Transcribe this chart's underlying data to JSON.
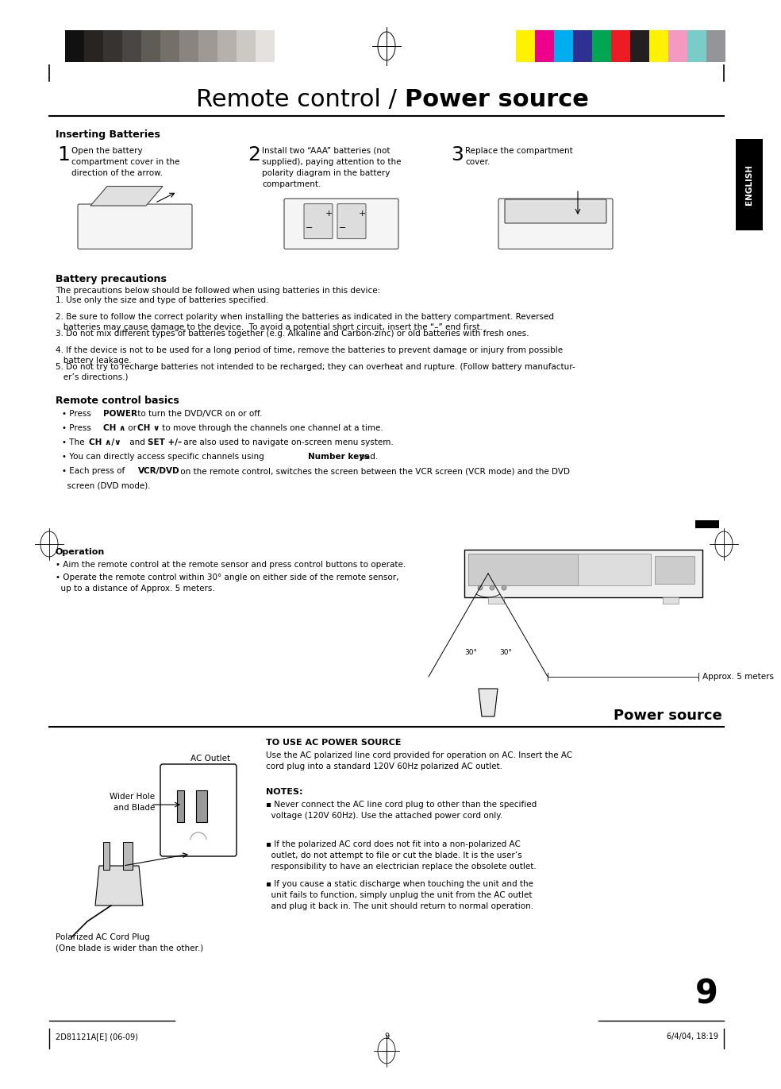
{
  "bg_color": "#ffffff",
  "page_width": 9.54,
  "page_height": 13.51,
  "title_normal": "Remote control / ",
  "title_bold": "Power source",
  "section1_header": "Inserting Batteries",
  "step1_num": "1",
  "step1_text": "Open the battery\ncompartment cover in the\ndirection of the arrow.",
  "step2_num": "2",
  "step2_text": "Install two “AAA” batteries (not\nsupplied), paying attention to the\npolarity diagram in the battery\ncompartment.",
  "step3_num": "3",
  "step3_text": "Replace the compartment\ncover.",
  "section2_header": "Battery precautions",
  "battery_precautions_intro": "The precautions below should be followed when using batteries in this device:",
  "battery_precautions": [
    "1. Use only the size and type of batteries specified.",
    "2. Be sure to follow the correct polarity when installing the batteries as indicated in the battery compartment. Reversed\n   batteries may cause damage to the device.  To avoid a potential short circuit, insert the “–” end first.",
    "3. Do not mix different types of batteries together (e.g. Alkaline and Carbon-zinc) or old batteries with fresh ones.",
    "4. If the device is not to be used for a long period of time, remove the batteries to prevent damage or injury from possible\n   battery leakage.",
    "5. Do not try to recharge batteries not intended to be recharged; they can overheat and rupture. (Follow battery manufactur-\n   er’s directions.)"
  ],
  "section3_header": "Remote control basics",
  "remote_bullet1a": "• Press ",
  "remote_bullet1b": "POWER",
  "remote_bullet1c": " to turn the DVD/VCR on or off.",
  "remote_bullet2a": "• Press ",
  "remote_bullet2b": "CH ∧",
  "remote_bullet2c": " or ",
  "remote_bullet2d": "CH ∨",
  "remote_bullet2e": " to move through the channels one channel at a time.",
  "remote_bullet3a": "• The ",
  "remote_bullet3b": "CH ∧/∨",
  "remote_bullet3c": " and ",
  "remote_bullet3d": "SET +/–",
  "remote_bullet3e": " are also used to navigate on-screen menu system.",
  "remote_bullet4a": "• You can directly access specific channels using ",
  "remote_bullet4b": "Number keys",
  "remote_bullet4c": " pad.",
  "remote_bullet5a": "• Each press of ",
  "remote_bullet5b": "VCR/DVD",
  "remote_bullet5c": " on the remote control, switches the screen between the VCR screen (VCR mode) and the DVD",
  "remote_bullet5d": "  screen (DVD mode).",
  "operation_header": "Operation",
  "op_bullet1": "• Aim the remote control at the remote sensor and press control buttons to operate.",
  "op_bullet2a": "• Operate the remote control within 30° angle on either side of the remote sensor,",
  "op_bullet2b": "  up to a distance of Approx. 5 meters.",
  "approx_label": "Approx. 5 meters",
  "angle_label1": "30°",
  "angle_label2": "30°",
  "power_source_header": "Power source",
  "ac_power_header": "TO USE AC POWER SOURCE",
  "ac_power_text": "Use the AC polarized line cord provided for operation on AC. Insert the AC\ncord plug into a standard 120V 60Hz polarized AC outlet.",
  "notes_header": "NOTES:",
  "note1a": "▪ Never connect the AC line cord plug to other than the specified",
  "note1b": "  voltage (120V 60Hz). Use the attached power cord only.",
  "note2a": "▪ If the polarized AC cord does not fit into a non-polarized AC",
  "note2b": "  outlet, do not attempt to file or cut the blade. It is the user’s",
  "note2c": "  responsibility to have an electrician replace the obsolete outlet.",
  "note3a": "▪ If you cause a static discharge when touching the unit and the",
  "note3b": "  unit fails to function, simply unplug the unit from the AC outlet",
  "note3c": "  and plug it back in. The unit should return to normal operation.",
  "ac_outlet_label": "AC Outlet",
  "wider_hole_label": "Wider Hole\nand Blade",
  "polarized_label": "Polarized AC Cord Plug\n(One blade is wider than the other.)",
  "footer_left": "2D81121A[E] (06-09)",
  "footer_center": "9",
  "footer_right": "6/4/04, 18:19",
  "page_number": "9",
  "english_tab_color": "#000000",
  "english_tab_text": "ENGLISH",
  "grayscale_colors": [
    "#111111",
    "#272422",
    "#373330",
    "#4a4643",
    "#5f5b55",
    "#746f68",
    "#898480",
    "#9e9994",
    "#b6b1ac",
    "#ccc9c4",
    "#e4e1de",
    "#ffffff"
  ],
  "color_bars": [
    "#fef200",
    "#ec008c",
    "#00aeef",
    "#2e3092",
    "#00a651",
    "#ed1c24",
    "#231f20",
    "#fef200",
    "#f49ac1",
    "#7accc8",
    "#939598"
  ]
}
